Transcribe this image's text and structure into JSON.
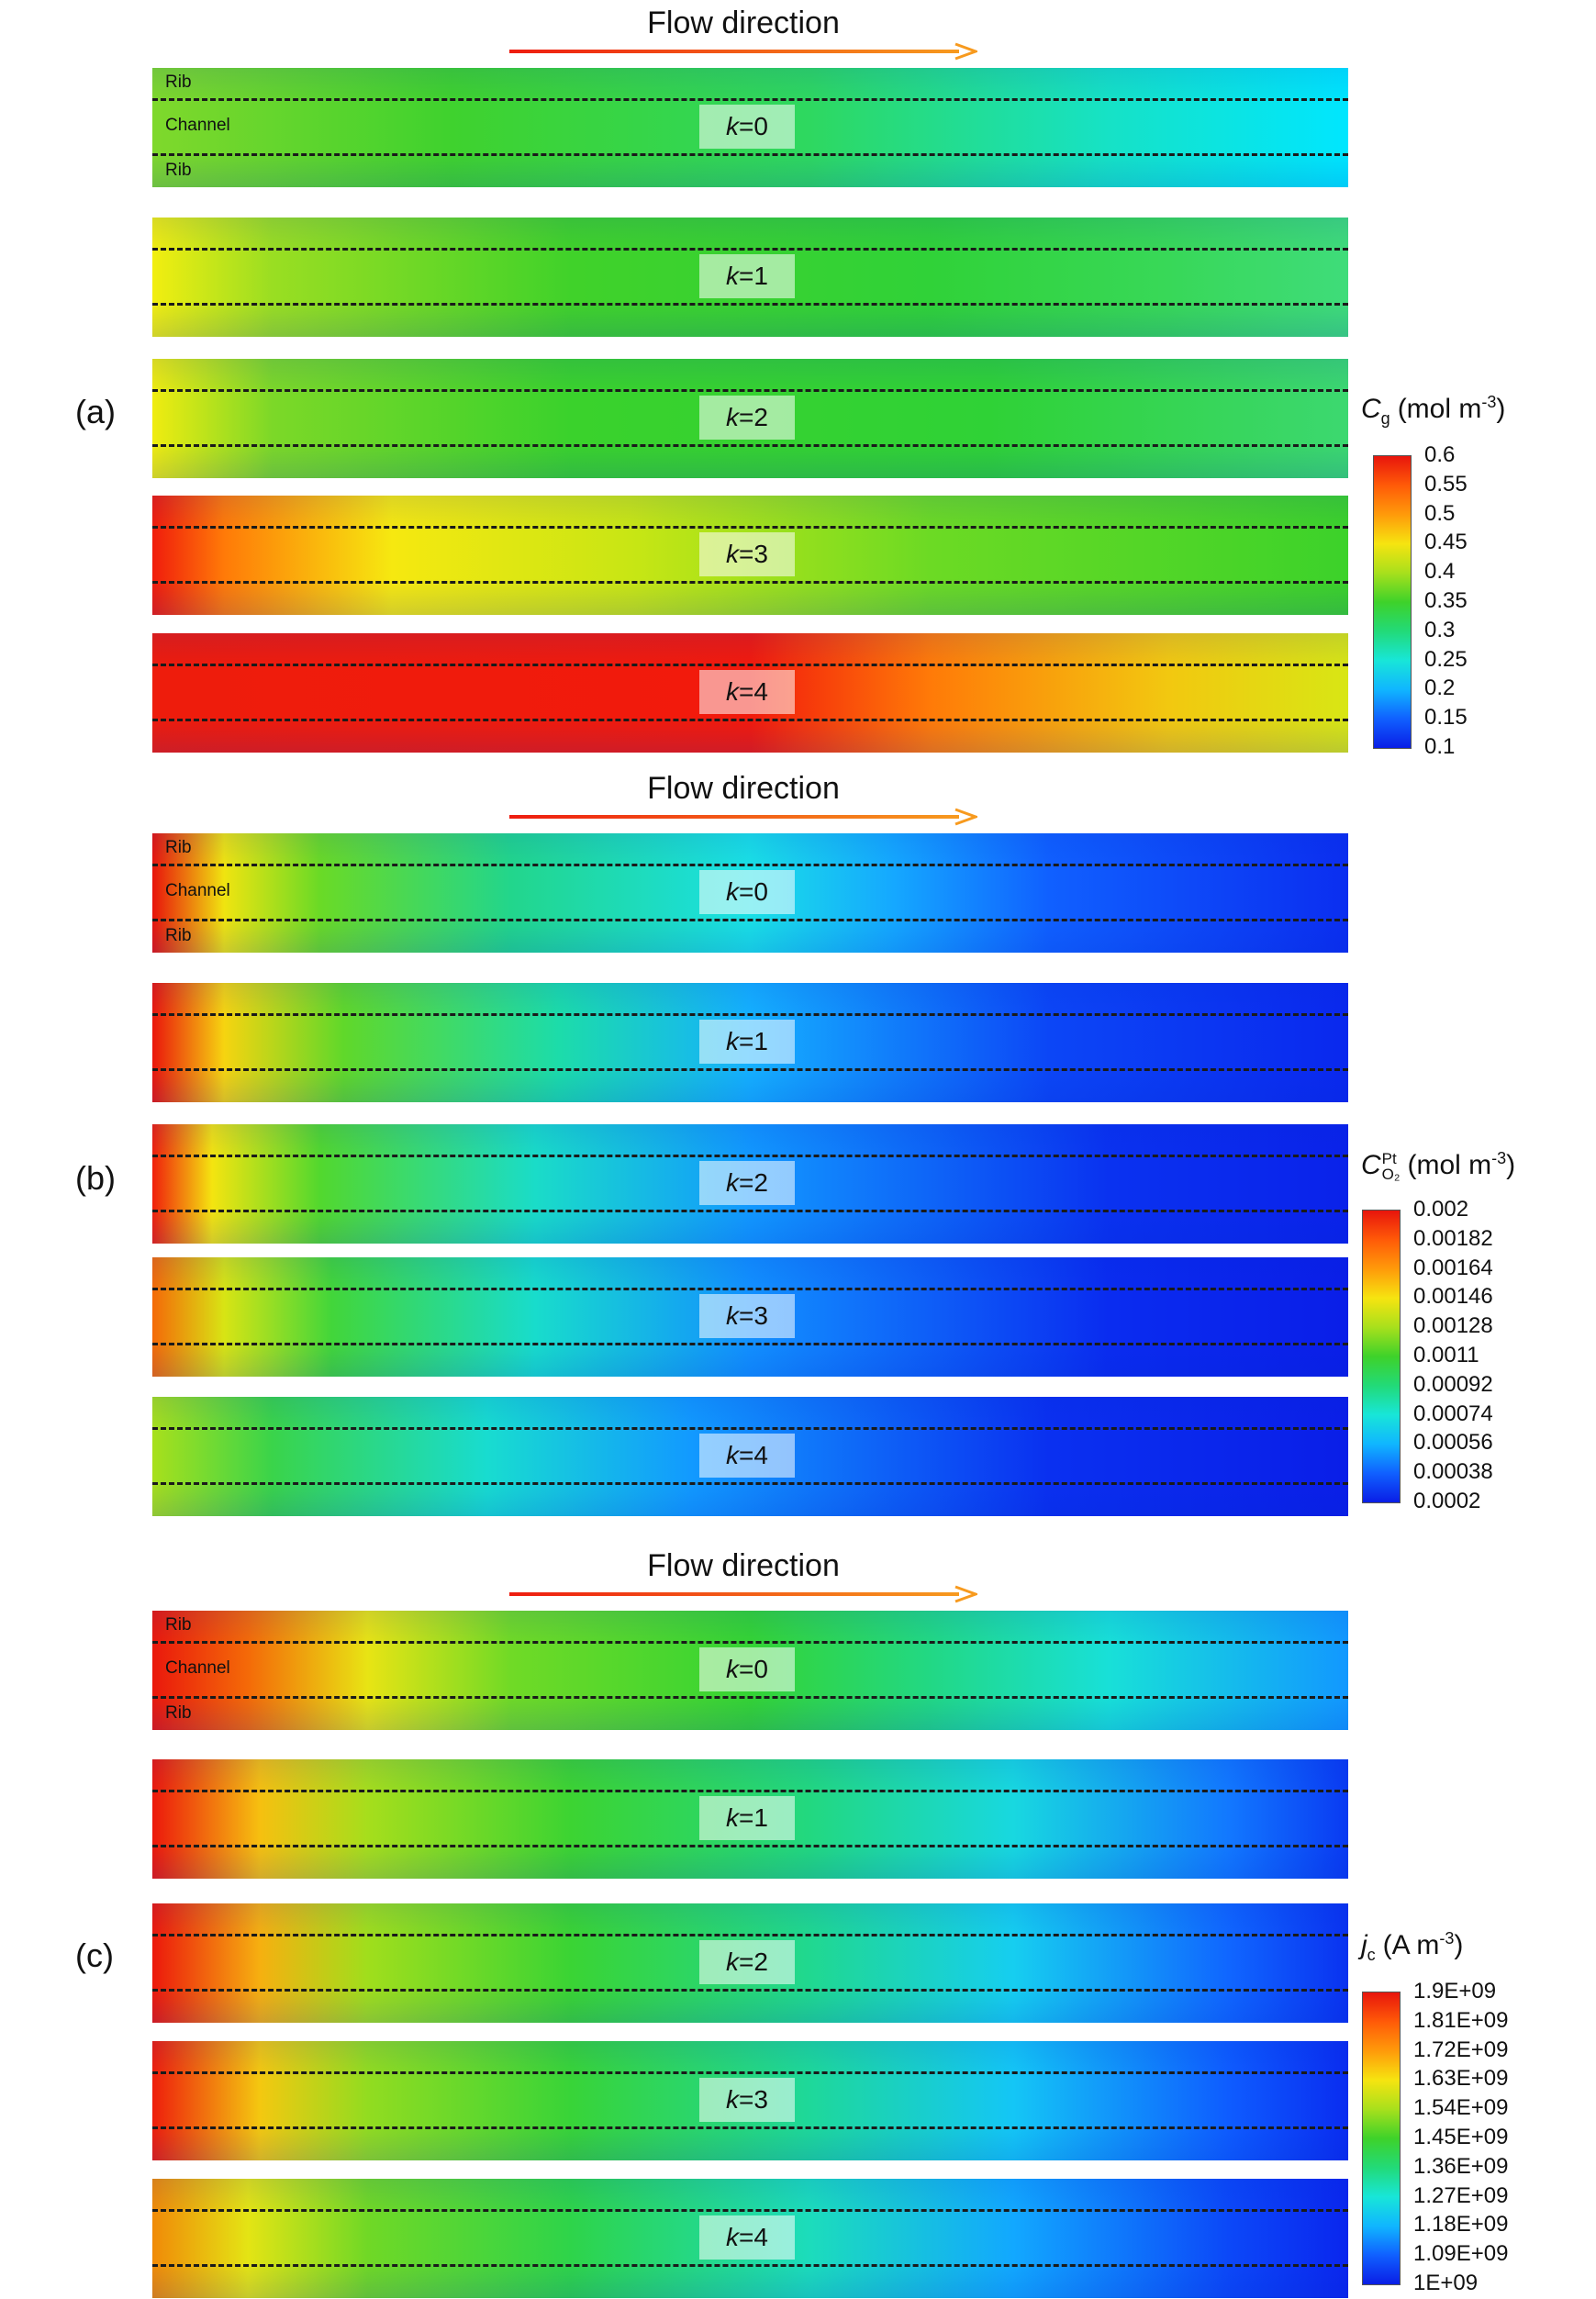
{
  "flow_label": "Flow direction",
  "zone_labels": {
    "rib": "Rib",
    "channel": "Channel"
  },
  "panels": [
    {
      "id": "a",
      "label": "(a)",
      "strips": [
        {
          "k": "0",
          "show_zones": true,
          "gradient": "linear-gradient(90deg, #7fd82c 0%, #3fd22e 25%, #2ed860 55%, #16e2c6 80%, #00e6ff 100%)"
        },
        {
          "k": "1",
          "show_zones": false,
          "gradient": "linear-gradient(90deg, #f2ee10 0%, #9ade22 10%, #40d22a 35%, #30d238 65%, #38d858 85%, #3fdc7a 100%)"
        },
        {
          "k": "2",
          "show_zones": false,
          "gradient": "linear-gradient(90deg, #f0ec10 0%, #7cd828 10%, #3ad22c 35%, #2fd236 70%, #3cd870 100%)"
        },
        {
          "k": "3",
          "show_zones": false,
          "gradient": "linear-gradient(90deg, #f01c0c 0%, #ff7a08 6%, #f6e810 20%, #c8e614 40%, #6cda24 65%, #3cd22a 100%)"
        },
        {
          "k": "4",
          "show_zones": false,
          "gradient": "linear-gradient(90deg, #ee1c0c 0%, #f21a0c 50%, #ff7a08 65%, #f2c810 85%, #d8e614 100%)"
        }
      ],
      "colorbar": {
        "title_symbol": "C",
        "title_sub": "g",
        "title_sup": "",
        "title_unit": "(mol m",
        "title_unit_exp": "-3",
        "title_close": ")",
        "ticks": [
          "0.6",
          "0.55",
          "0.5",
          "0.45",
          "0.4",
          "0.35",
          "0.3",
          "0.25",
          "0.2",
          "0.15",
          "0.1"
        ],
        "colors": [
          "#e8150c",
          "#ff5a08",
          "#ff9a0a",
          "#f6e410",
          "#a8e01c",
          "#3ed22a",
          "#22da78",
          "#18e6d8",
          "#10b6ff",
          "#1060ff",
          "#0a1ee6"
        ]
      }
    },
    {
      "id": "b",
      "label": "(b)",
      "strips": [
        {
          "k": "0",
          "show_zones": true,
          "gradient": "linear-gradient(90deg, #e8140c 0%, #f0e410 6%, #6ada26 14%, #22d68c 30%, #1ae0e6 50%, #15a8ff 62%, #1060ff 75%, #0b2ef0 100%)"
        },
        {
          "k": "1",
          "show_zones": false,
          "gradient": "linear-gradient(90deg, #ea160c 0%, #f6d410 6%, #60d82a 16%, #1cdcaa 34%, #15b0ff 50%, #0c46f6 75%, #0a28ee 100%)"
        },
        {
          "k": "2",
          "show_zones": false,
          "gradient": "linear-gradient(90deg, #f0200c 0%, #f4e410 5%, #52d82e 14%, #1adcc8 32%, #1298ff 50%, #0a32f0 80%, #0a22ea 100%)"
        },
        {
          "k": "3",
          "show_zones": false,
          "gradient": "linear-gradient(90deg, #f46a08 0%, #d8e414 6%, #42d63a 15%, #18dccc 32%, #1290ff 50%, #0a2cf0 80%, #0a1ee8 100%)"
        },
        {
          "k": "4",
          "show_zones": false,
          "gradient": "linear-gradient(90deg, #a8e01c 0%, #3ad44a 10%, #18dcd0 28%, #129aff 45%, #0a30f0 75%, #0a1ee8 100%)"
        }
      ],
      "colorbar": {
        "title_symbol": "C",
        "title_sub": "O₂",
        "title_sup": "Pt",
        "title_unit": "(mol m",
        "title_unit_exp": "-3",
        "title_close": ")",
        "ticks": [
          "0.002",
          "0.00182",
          "0.00164",
          "0.00146",
          "0.00128",
          "0.0011",
          "0.00092",
          "0.00074",
          "0.00056",
          "0.00038",
          "0.0002"
        ],
        "colors": [
          "#e8150c",
          "#ff5a08",
          "#ff9a0a",
          "#f6e410",
          "#a8e01c",
          "#3ed22a",
          "#22da78",
          "#18e6d8",
          "#10b6ff",
          "#1060ff",
          "#0a1ee6"
        ]
      }
    },
    {
      "id": "c",
      "label": "(c)",
      "strips": [
        {
          "k": "0",
          "show_zones": true,
          "gradient": "linear-gradient(90deg, #ea180c 0%, #f46a08 8%, #e8e414 18%, #70da26 30%, #34d434 50%, #22d884 65%, #18e0d8 80%, #1298ff 100%)"
        },
        {
          "k": "1",
          "show_zones": false,
          "gradient": "linear-gradient(90deg, #ec180c 0%, #f6c010 9%, #a6de1c 18%, #3cd432 35%, #22d880 55%, #18d8e0 72%, #1278ff 90%, #0a3af2 100%)"
        },
        {
          "k": "2",
          "show_zones": false,
          "gradient": "linear-gradient(90deg, #ec180c 0%, #f6b010 9%, #a0de1c 18%, #3ad434 35%, #20d890 55%, #16cef0 72%, #1066ff 90%, #0a32f0 100%)"
        },
        {
          "k": "3",
          "show_zones": false,
          "gradient": "linear-gradient(90deg, #ee1e0c 0%, #f4c810 9%, #92dc20 18%, #38d438 35%, #1ed89a 55%, #14c6f6 72%, #0e5cff 90%, #0a2cf0 100%)"
        },
        {
          "k": "4",
          "show_zones": false,
          "gradient": "linear-gradient(90deg, #f08a08 0%, #e4e414 8%, #70d826 18%, #2ed44a 35%, #1cdcbc 55%, #12a8ff 72%, #0c48f8 90%, #0a26ee 100%)"
        }
      ],
      "colorbar": {
        "title_symbol": "j",
        "title_sub": "c",
        "title_sup": "",
        "title_unit": "(A m",
        "title_unit_exp": "-3",
        "title_close": ")",
        "ticks": [
          "1.9E+09",
          "1.81E+09",
          "1.72E+09",
          "1.63E+09",
          "1.54E+09",
          "1.45E+09",
          "1.36E+09",
          "1.27E+09",
          "1.18E+09",
          "1.09E+09",
          "1E+09"
        ],
        "colors": [
          "#e8150c",
          "#ff5a08",
          "#ff9a0a",
          "#f6e410",
          "#a8e01c",
          "#3ed22a",
          "#22da78",
          "#18e6d8",
          "#10b6ff",
          "#1060ff",
          "#0a1ee6"
        ]
      }
    }
  ]
}
